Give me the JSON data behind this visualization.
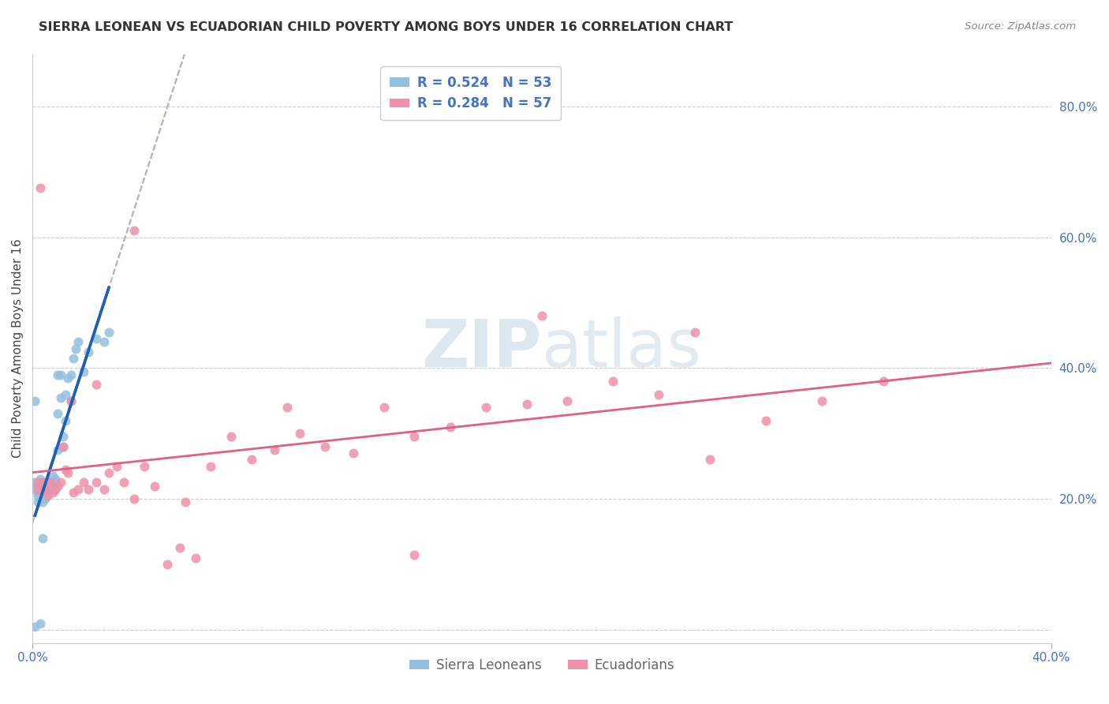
{
  "title": "SIERRA LEONEAN VS ECUADORIAN CHILD POVERTY AMONG BOYS UNDER 16 CORRELATION CHART",
  "source": "Source: ZipAtlas.com",
  "ylabel": "Child Poverty Among Boys Under 16",
  "xlim": [
    0.0,
    0.4
  ],
  "ylim": [
    -0.02,
    0.88
  ],
  "yticks": [
    0.0,
    0.2,
    0.4,
    0.6,
    0.8
  ],
  "xticks": [
    0.0,
    0.4
  ],
  "ytick_labels": [
    "",
    "20.0%",
    "40.0%",
    "60.0%",
    "80.0%"
  ],
  "xtick_labels": [
    "0.0%",
    "40.0%"
  ],
  "R_sl": 0.524,
  "N_sl": 53,
  "R_ec": 0.284,
  "N_ec": 57,
  "sl_color": "#92c0e0",
  "ec_color": "#f090a8",
  "sl_line_color": "#2060b0",
  "ec_line_color": "#e06080",
  "dashed_line_color": "#b0b8c8",
  "legend_text_color": "#4472c4",
  "axis_color": "#4472c4",
  "title_color": "#333333",
  "watermark_zip": "ZIP",
  "watermark_atlas": "atlas",
  "watermark_color": "#dce8f0",
  "background_color": "#ffffff",
  "grid_color": "#cccccc",
  "sl_scatter_x": [
    0.001,
    0.001,
    0.002,
    0.002,
    0.002,
    0.003,
    0.003,
    0.003,
    0.003,
    0.004,
    0.004,
    0.004,
    0.005,
    0.005,
    0.005,
    0.005,
    0.006,
    0.006,
    0.006,
    0.007,
    0.007,
    0.007,
    0.008,
    0.008,
    0.008,
    0.009,
    0.009,
    0.009,
    0.01,
    0.01,
    0.01,
    0.011,
    0.011,
    0.012,
    0.012,
    0.013,
    0.013,
    0.014,
    0.015,
    0.015,
    0.016,
    0.017,
    0.018,
    0.02,
    0.022,
    0.025,
    0.028,
    0.03,
    0.001,
    0.002,
    0.004,
    0.003,
    0.001
  ],
  "sl_scatter_y": [
    0.215,
    0.225,
    0.205,
    0.195,
    0.22,
    0.21,
    0.23,
    0.215,
    0.2,
    0.215,
    0.225,
    0.195,
    0.21,
    0.2,
    0.225,
    0.215,
    0.225,
    0.205,
    0.215,
    0.22,
    0.215,
    0.225,
    0.235,
    0.22,
    0.215,
    0.23,
    0.225,
    0.215,
    0.275,
    0.33,
    0.39,
    0.355,
    0.39,
    0.295,
    0.28,
    0.32,
    0.36,
    0.385,
    0.35,
    0.39,
    0.415,
    0.43,
    0.44,
    0.395,
    0.425,
    0.445,
    0.44,
    0.455,
    0.35,
    0.21,
    0.14,
    0.01,
    0.005
  ],
  "ec_scatter_x": [
    0.002,
    0.003,
    0.004,
    0.005,
    0.006,
    0.007,
    0.008,
    0.009,
    0.01,
    0.011,
    0.012,
    0.013,
    0.014,
    0.015,
    0.016,
    0.018,
    0.02,
    0.022,
    0.025,
    0.028,
    0.03,
    0.033,
    0.036,
    0.04,
    0.044,
    0.048,
    0.053,
    0.058,
    0.064,
    0.07,
    0.078,
    0.086,
    0.095,
    0.105,
    0.115,
    0.126,
    0.138,
    0.15,
    0.164,
    0.178,
    0.194,
    0.21,
    0.228,
    0.246,
    0.266,
    0.288,
    0.31,
    0.334,
    0.002,
    0.003,
    0.025,
    0.04,
    0.06,
    0.1,
    0.15,
    0.2,
    0.26
  ],
  "ec_scatter_y": [
    0.225,
    0.215,
    0.225,
    0.215,
    0.205,
    0.225,
    0.21,
    0.215,
    0.22,
    0.225,
    0.28,
    0.245,
    0.24,
    0.35,
    0.21,
    0.215,
    0.225,
    0.215,
    0.225,
    0.215,
    0.24,
    0.25,
    0.225,
    0.2,
    0.25,
    0.22,
    0.1,
    0.125,
    0.11,
    0.25,
    0.295,
    0.26,
    0.275,
    0.3,
    0.28,
    0.27,
    0.34,
    0.295,
    0.31,
    0.34,
    0.345,
    0.35,
    0.38,
    0.36,
    0.26,
    0.32,
    0.35,
    0.38,
    0.215,
    0.675,
    0.375,
    0.61,
    0.195,
    0.34,
    0.115,
    0.48,
    0.455
  ]
}
